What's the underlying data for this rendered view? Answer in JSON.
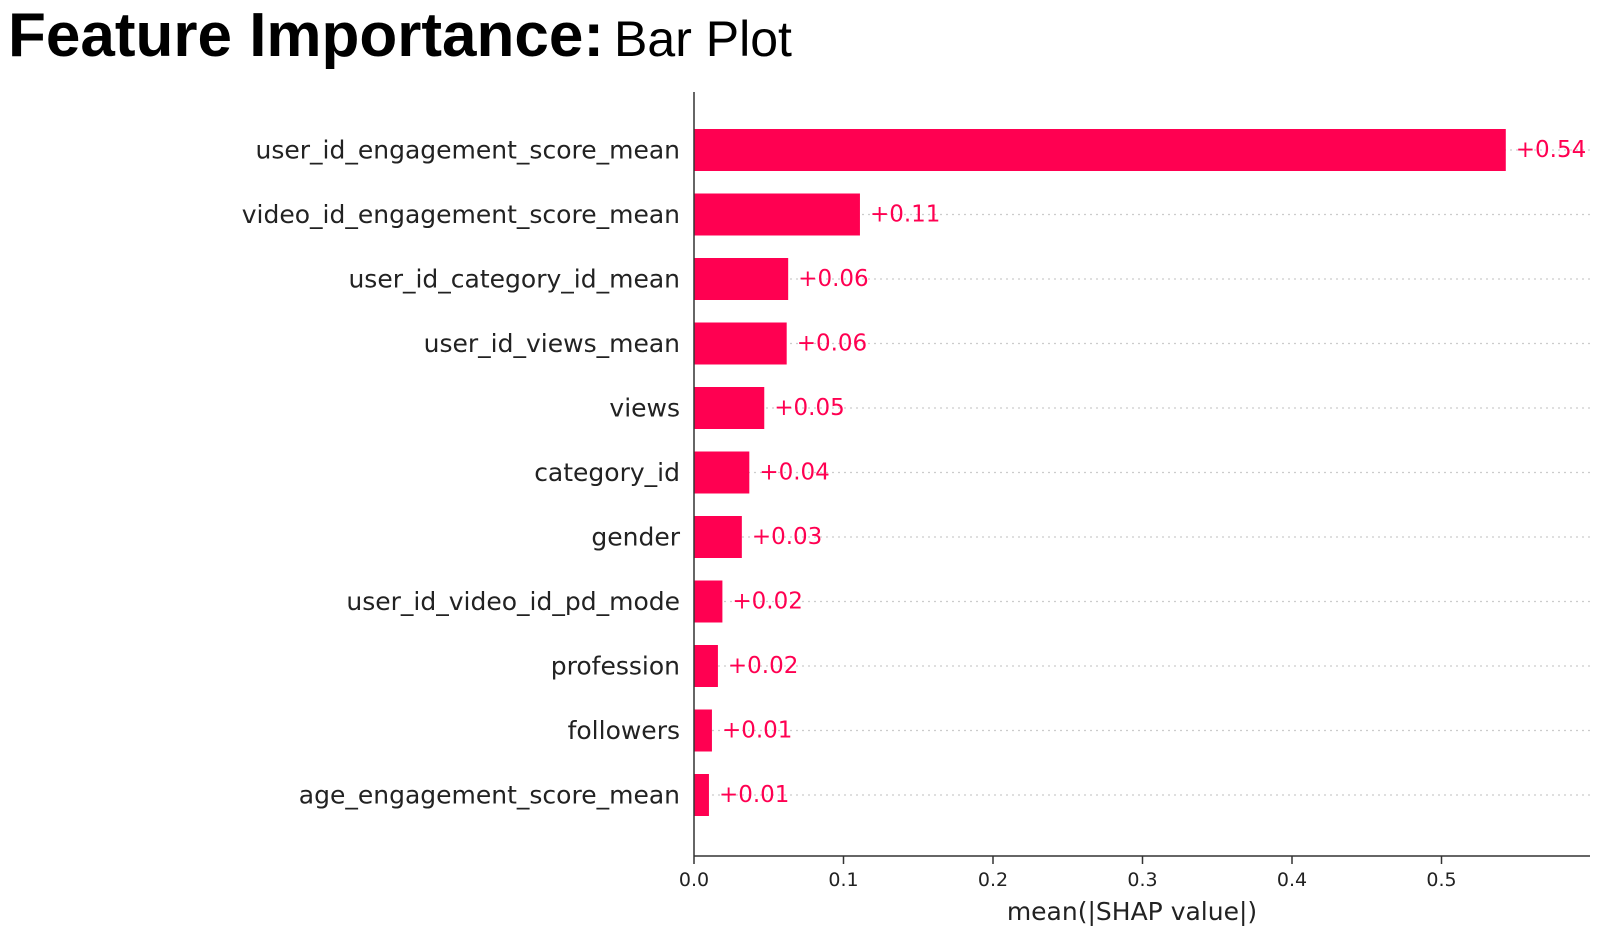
{
  "header": {
    "title": "Feature Importance:",
    "subtitle": "Bar Plot"
  },
  "colors": {
    "bar": "#ff0051",
    "text": "#222222",
    "axis": "#333333",
    "grid": "#cccccc"
  },
  "chart_data": {
    "type": "bar",
    "orientation": "horizontal",
    "categories": [
      "user_id_engagement_score_mean",
      "video_id_engagement_score_mean",
      "user_id_category_id_mean",
      "user_id_views_mean",
      "views",
      "category_id",
      "gender",
      "user_id_video_id_pd_mode",
      "profession",
      "followers",
      "age_engagement_score_mean"
    ],
    "values": [
      0.543,
      0.111,
      0.063,
      0.062,
      0.047,
      0.037,
      0.032,
      0.019,
      0.016,
      0.012,
      0.01
    ],
    "value_labels": [
      "+0.54",
      "+0.11",
      "+0.06",
      "+0.06",
      "+0.05",
      "+0.04",
      "+0.03",
      "+0.02",
      "+0.02",
      "+0.01",
      "+0.01"
    ],
    "xlabel": "mean(|SHAP value|)",
    "ylabel": "",
    "xlim": [
      0,
      0.6
    ],
    "xticks": [
      "0.0",
      "0.1",
      "0.2",
      "0.3",
      "0.4",
      "0.5"
    ],
    "grid": "dotted horizontal lines behind bars",
    "legend": "none"
  }
}
